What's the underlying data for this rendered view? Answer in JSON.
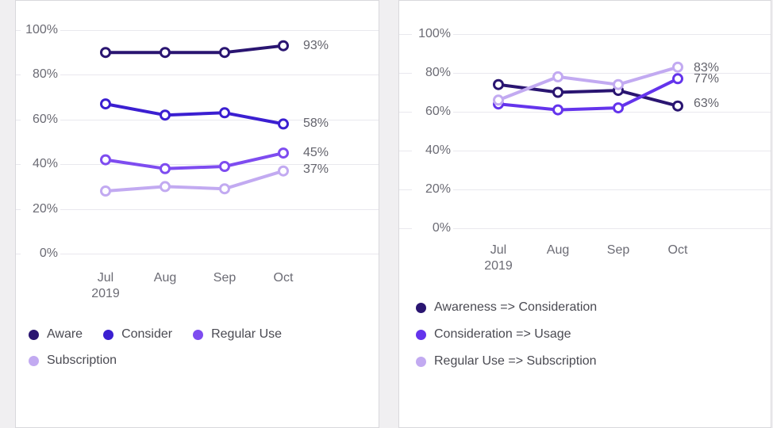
{
  "page": {
    "background": "#f0eff1",
    "card_border": "#d9d8dc",
    "grid_color": "#e9e8ee"
  },
  "chart_data": [
    {
      "type": "line",
      "title": "",
      "categories": [
        "Jul 2019",
        "Aug",
        "Sep",
        "Oct"
      ],
      "x_tick_labels": [
        "Jul",
        "Aug",
        "Sep",
        "Oct"
      ],
      "x_tick_subline": "2019",
      "y_ticks": [
        "100%",
        "80%",
        "60%",
        "40%",
        "20%",
        "0%"
      ],
      "ylim": [
        0,
        100
      ],
      "grid": "horizontal",
      "legend_position": "bottom",
      "series": [
        {
          "name": "Aware",
          "color": "#2a1571",
          "values": [
            90,
            90,
            90,
            93
          ],
          "end_label": "93%"
        },
        {
          "name": "Consider",
          "color": "#3b1fd1",
          "values": [
            67,
            62,
            63,
            58
          ],
          "end_label": "58%"
        },
        {
          "name": "Regular Use",
          "color": "#7e4cf0",
          "values": [
            42,
            38,
            39,
            45
          ],
          "end_label": "45%"
        },
        {
          "name": "Subscription",
          "color": "#c2aaf1",
          "values": [
            28,
            30,
            29,
            37
          ],
          "end_label": "37%"
        }
      ]
    },
    {
      "type": "line",
      "title": "",
      "categories": [
        "Jul 2019",
        "Aug",
        "Sep",
        "Oct"
      ],
      "x_tick_labels": [
        "Jul",
        "Aug",
        "Sep",
        "Oct"
      ],
      "x_tick_subline": "2019",
      "y_ticks": [
        "100%",
        "80%",
        "60%",
        "40%",
        "20%",
        "0%"
      ],
      "ylim": [
        0,
        100
      ],
      "grid": "horizontal",
      "legend_position": "bottom",
      "series": [
        {
          "name": "Awareness => Consideration",
          "color": "#2a1571",
          "values": [
            74,
            70,
            71,
            63
          ],
          "end_label": "63%"
        },
        {
          "name": "Consideration => Usage",
          "color": "#6434ec",
          "values": [
            64,
            61,
            62,
            77
          ],
          "end_label": "77%"
        },
        {
          "name": "Regular Use => Subscription",
          "color": "#c2aaf1",
          "values": [
            66,
            78,
            74,
            83
          ],
          "end_label": "83%"
        }
      ]
    }
  ]
}
